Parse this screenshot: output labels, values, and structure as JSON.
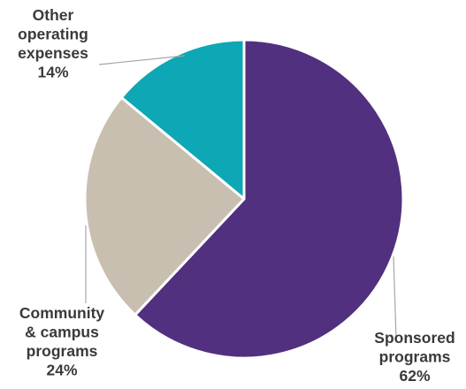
{
  "chart_data": {
    "type": "pie",
    "title": "",
    "slices": [
      {
        "label_lines": [
          "Sponsored",
          "programs"
        ],
        "value": 62,
        "value_label": "62%",
        "color": "#51307f"
      },
      {
        "label_lines": [
          "Community",
          "& campus",
          "programs"
        ],
        "value": 24,
        "value_label": "24%",
        "color": "#c9bfb1"
      },
      {
        "label_lines": [
          "Other",
          "operating",
          "expenses"
        ],
        "value": 14,
        "value_label": "14%",
        "color": "#0da7b5"
      }
    ],
    "start_angle": "12 o'clock",
    "direction": "clockwise",
    "legend": "none",
    "label_placement": "outside with leader lines"
  }
}
